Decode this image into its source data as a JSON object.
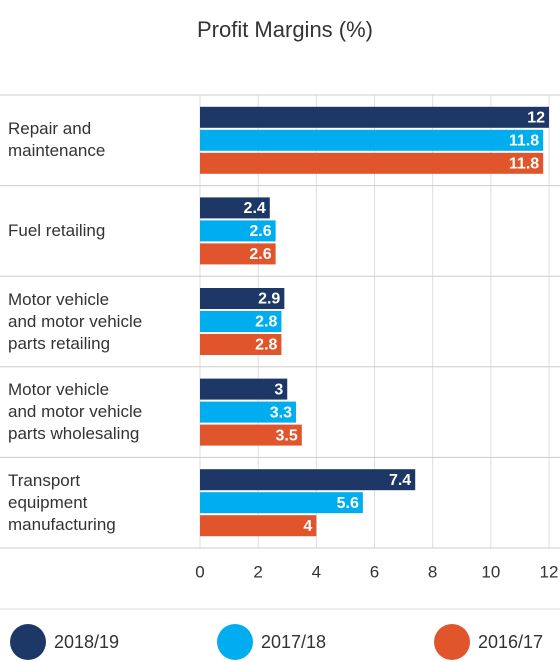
{
  "chart_data": {
    "type": "bar",
    "orientation": "horizontal",
    "title": "Profit Margins (%)",
    "categories": [
      "Repair and\nmaintenance",
      "Fuel retailing",
      "Motor vehicle\nand motor vehicle\nparts retailing",
      "Motor vehicle\nand motor vehicle\nparts wholesaling",
      "Transport\nequipment\nmanufacturing"
    ],
    "series": [
      {
        "name": "2018/19",
        "color": "#1d3867",
        "values": [
          12,
          2.4,
          2.9,
          3,
          7.4
        ]
      },
      {
        "name": "2017/18",
        "color": "#00aeef",
        "values": [
          11.8,
          2.6,
          2.8,
          3.3,
          5.6
        ]
      },
      {
        "name": "2016/17",
        "color": "#e0552b",
        "values": [
          11.8,
          2.6,
          2.8,
          3.5,
          4
        ]
      }
    ],
    "xlim": [
      0,
      12
    ],
    "xticks": [
      0,
      2,
      4,
      6,
      8,
      10,
      12
    ],
    "grid": true,
    "legend": "bottom"
  }
}
